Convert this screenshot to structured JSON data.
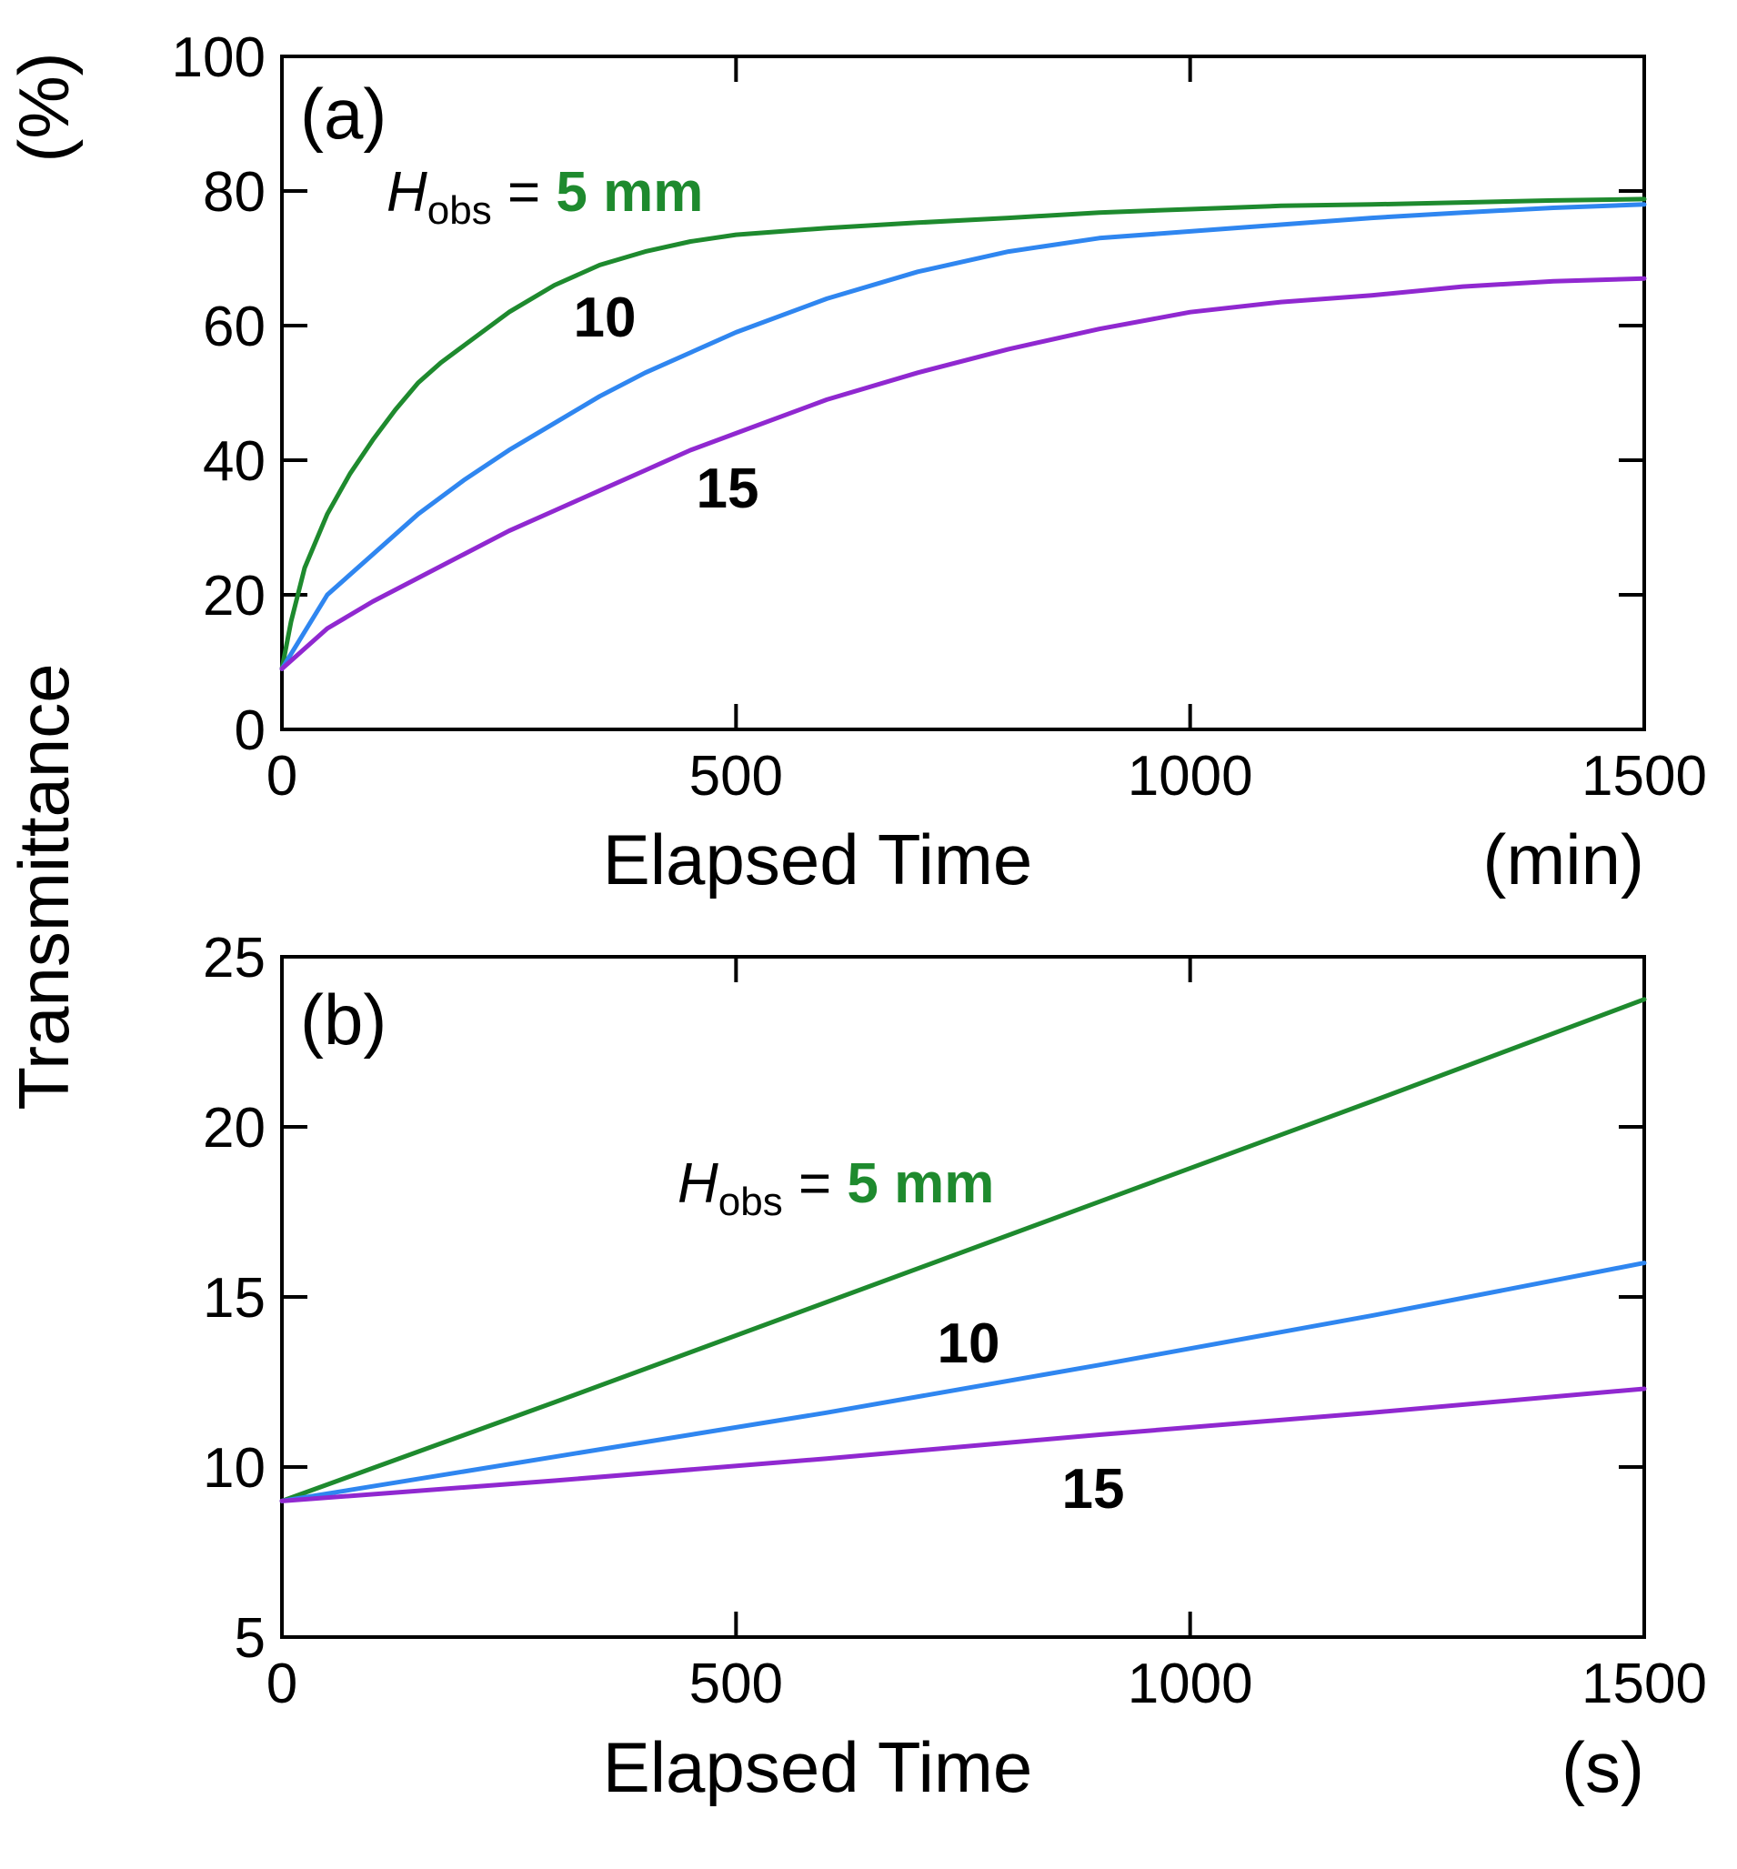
{
  "figure": {
    "y_axis_title": "Transmittance",
    "y_unit": "(%)"
  },
  "chart_data": [
    {
      "type": "line",
      "panel_label": "(a)",
      "xlabel": "Elapsed Time",
      "x_unit": "(min)",
      "ylabel": "Transmittance",
      "y_unit": "(%)",
      "xlim": [
        0,
        1500
      ],
      "ylim": [
        0,
        100
      ],
      "x_ticks": [
        0,
        500,
        1000,
        1500
      ],
      "y_ticks": [
        0,
        20,
        40,
        60,
        80,
        100
      ],
      "grid": false,
      "annotation": {
        "symbol": "H",
        "subscript": "obs",
        "equals": " = ",
        "value": "5 mm"
      },
      "series": [
        {
          "name": "5 mm",
          "label": "5 mm",
          "color": "#1e8a2e",
          "x": [
            0,
            10,
            25,
            50,
            75,
            100,
            125,
            150,
            175,
            200,
            250,
            300,
            350,
            400,
            450,
            500,
            600,
            700,
            800,
            900,
            1000,
            1100,
            1200,
            1300,
            1400,
            1500
          ],
          "y": [
            9,
            16,
            24,
            32,
            38,
            43,
            47.5,
            51.5,
            54.5,
            57,
            62,
            66,
            69,
            71,
            72.5,
            73.5,
            74.5,
            75.3,
            76,
            76.8,
            77.3,
            77.8,
            78,
            78.3,
            78.6,
            78.8
          ]
        },
        {
          "name": "10",
          "label": "10",
          "color": "#2f86f0",
          "x": [
            0,
            50,
            100,
            150,
            200,
            250,
            300,
            350,
            400,
            450,
            500,
            600,
            700,
            800,
            900,
            1000,
            1100,
            1200,
            1300,
            1400,
            1500
          ],
          "y": [
            9,
            20,
            26,
            32,
            37,
            41.5,
            45.5,
            49.5,
            53,
            56,
            59,
            64,
            68,
            71,
            73,
            74,
            75,
            76,
            76.8,
            77.5,
            78
          ]
        },
        {
          "name": "15",
          "label": "15",
          "color": "#9028d0",
          "x": [
            0,
            50,
            100,
            150,
            200,
            250,
            300,
            350,
            400,
            450,
            500,
            600,
            700,
            800,
            900,
            1000,
            1100,
            1200,
            1300,
            1400,
            1500
          ],
          "y": [
            9,
            15,
            19,
            22.5,
            26,
            29.5,
            32.5,
            35.5,
            38.5,
            41.5,
            44,
            49,
            53,
            56.5,
            59.5,
            62,
            63.5,
            64.5,
            65.8,
            66.6,
            67
          ]
        }
      ]
    },
    {
      "type": "line",
      "panel_label": "(b)",
      "xlabel": "Elapsed Time",
      "x_unit": "(s)",
      "ylabel": "Transmittance",
      "y_unit": "(%)",
      "xlim": [
        0,
        1500
      ],
      "ylim": [
        5,
        25
      ],
      "x_ticks": [
        0,
        500,
        1000,
        1500
      ],
      "y_ticks": [
        5,
        10,
        15,
        20,
        25
      ],
      "grid": false,
      "annotation": {
        "symbol": "H",
        "subscript": "obs",
        "equals": " = ",
        "value": "5 mm"
      },
      "series": [
        {
          "name": "5 mm",
          "label": "5 mm",
          "color": "#1e8a2e",
          "x": [
            0,
            300,
            600,
            900,
            1200,
            1500
          ],
          "y": [
            9,
            11.9,
            14.85,
            17.8,
            20.75,
            23.75
          ]
        },
        {
          "name": "10",
          "label": "10",
          "color": "#2f86f0",
          "x": [
            0,
            300,
            600,
            900,
            1200,
            1500
          ],
          "y": [
            9,
            10.3,
            11.6,
            13.0,
            14.45,
            16.0
          ]
        },
        {
          "name": "15",
          "label": "15",
          "color": "#9028d0",
          "x": [
            0,
            300,
            600,
            900,
            1200,
            1500
          ],
          "y": [
            9,
            9.6,
            10.25,
            10.95,
            11.6,
            12.3
          ]
        }
      ]
    }
  ]
}
